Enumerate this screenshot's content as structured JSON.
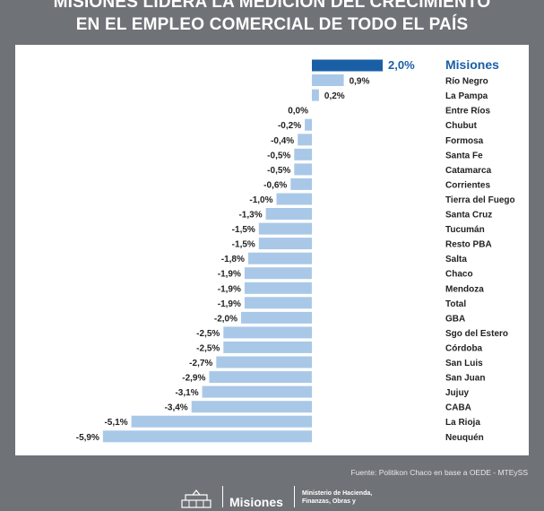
{
  "header": {
    "title_line1": "MISIONES LIDERA LA MEDICIÓN DEL CRECIMIENTO",
    "title_line2": "EN EL EMPLEO COMERCIAL DE TODO EL PAÍS"
  },
  "chart_data": {
    "type": "bar",
    "orientation": "horizontal",
    "categories": [
      "Misiones",
      "Río Negro",
      "La Pampa",
      "Entre Ríos",
      "Chubut",
      "Formosa",
      "Santa Fe",
      "Catamarca",
      "Corrientes",
      "Tierra del Fuego",
      "Santa Cruz",
      "Tucumán",
      "Resto PBA",
      "Salta",
      "Chaco",
      "Mendoza",
      "Total",
      "GBA",
      "Sgo del Estero",
      "Córdoba",
      "San Luis",
      "San Juan",
      "Jujuy",
      "CABA",
      "La Rioja",
      "Neuquén"
    ],
    "values": [
      2.0,
      0.9,
      0.2,
      0.0,
      -0.2,
      -0.4,
      -0.5,
      -0.5,
      -0.6,
      -1.0,
      -1.3,
      -1.5,
      -1.5,
      -1.8,
      -1.9,
      -1.9,
      -1.9,
      -2.0,
      -2.5,
      -2.5,
      -2.7,
      -2.9,
      -3.1,
      -3.4,
      -5.1,
      -5.9
    ],
    "value_labels": [
      "2,0%",
      "0,9%",
      "0,2%",
      "0,0%",
      "-0,2%",
      "-0,4%",
      "-0,5%",
      "-0,5%",
      "-0,6%",
      "-1,0%",
      "-1,3%",
      "-1,5%",
      "-1,5%",
      "-1,8%",
      "-1,9%",
      "-1,9%",
      "-1,9%",
      "-2,0%",
      "-2,5%",
      "-2,5%",
      "-2,7%",
      "-2,9%",
      "-3,1%",
      "-3,4%",
      "-5,1%",
      "-5,9%"
    ],
    "highlight": "Misiones",
    "colors": {
      "bar": "#a9c8e8",
      "highlight": "#1a5fa6",
      "label": "#222222"
    }
  },
  "source": "Fuente: Politikon Chaco en base a OEDE - MTEySS",
  "footer": {
    "brand": "Misiones",
    "ministry_line1": "Ministerio de Hacienda,",
    "ministry_line2": "Finanzas, Obras y"
  }
}
